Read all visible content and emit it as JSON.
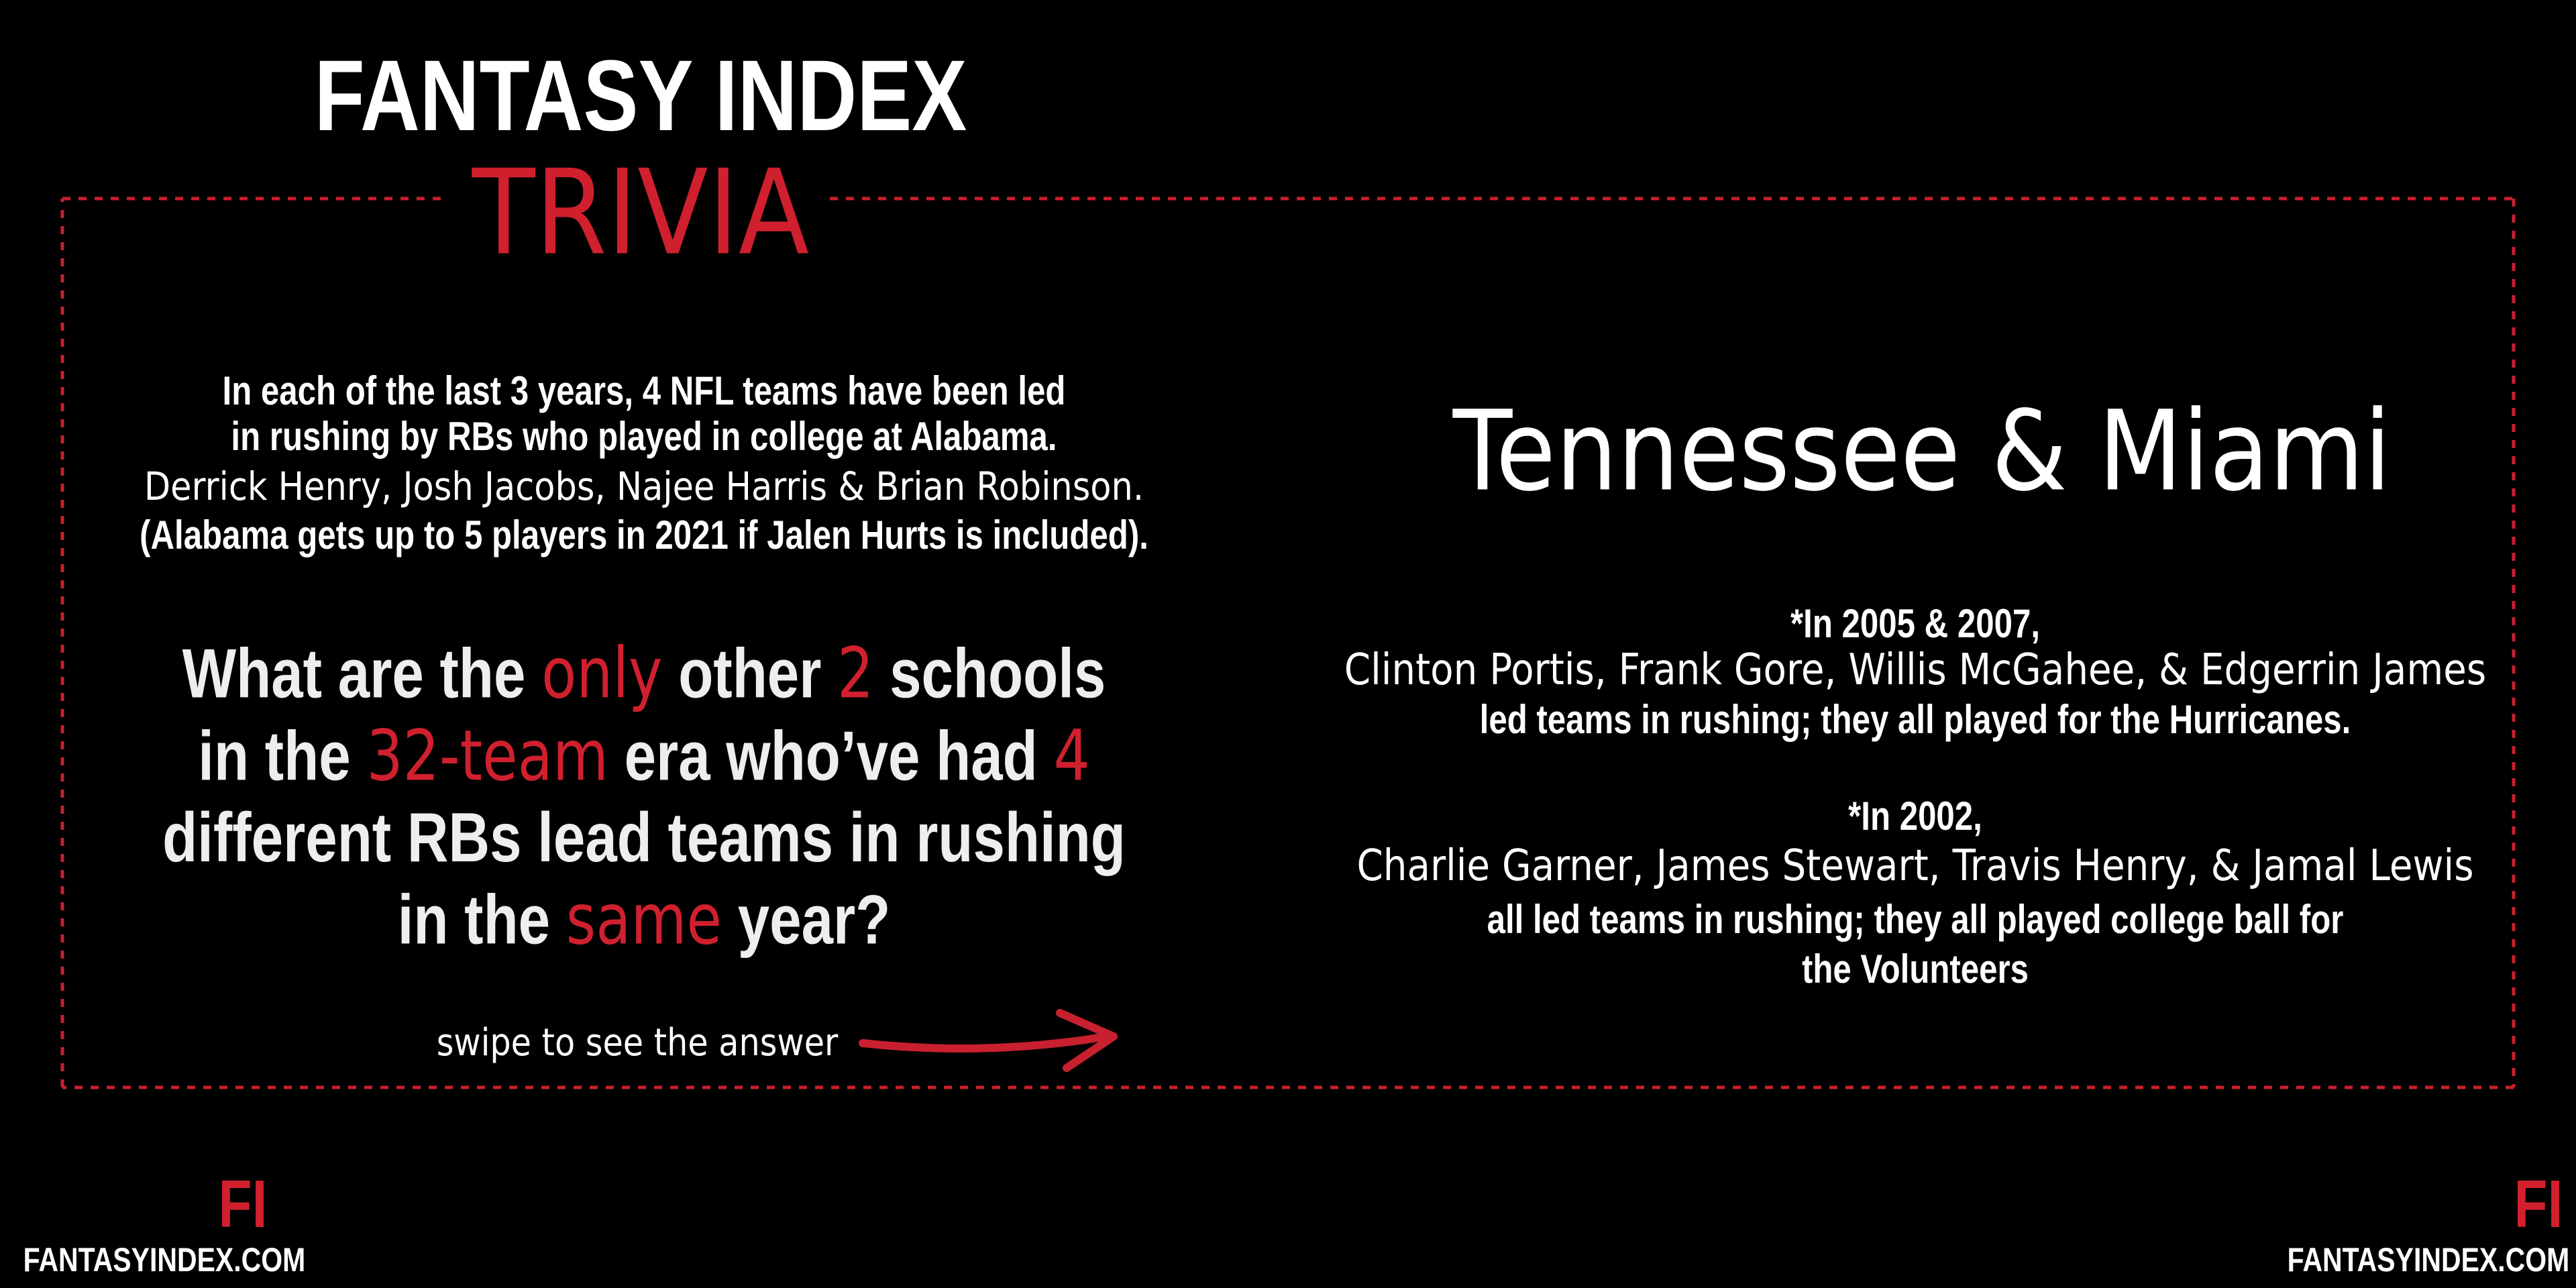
{
  "header": {
    "title": "FANTASY INDEX",
    "subtitle": "TRIVIA"
  },
  "intro": [
    "In each of the last 3 years, 4 NFL teams have been led",
    "in rushing by RBs who played in college at Alabama.",
    "Derrick Henry, Josh Jacobs, Najee Harris & Brian Robinson.",
    "(Alabama gets up to 5 players in 2021 if Jalen Hurts is included)."
  ],
  "question": [
    [
      {
        "text": "What are the ",
        "color": "#eeeeee"
      },
      {
        "text": "only",
        "color": "#d0202e"
      },
      {
        "text": " other ",
        "color": "#eeeeee"
      },
      {
        "text": "2",
        "color": "#d0202e"
      },
      {
        "text": " schools",
        "color": "#eeeeee"
      }
    ],
    [
      {
        "text": "in the ",
        "color": "#eeeeee"
      },
      {
        "text": "32-team",
        "color": "#d0202e"
      },
      {
        "text": " era who’ve had ",
        "color": "#eeeeee"
      },
      {
        "text": "4",
        "color": "#d0202e"
      }
    ],
    [
      {
        "text": "different RBs lead teams in rushing",
        "color": "#eeeeee"
      }
    ],
    [
      {
        "text": "in the ",
        "color": "#eeeeee"
      },
      {
        "text": "same",
        "color": "#d0202e"
      },
      {
        "text": " year?",
        "color": "#eeeeee"
      }
    ]
  ],
  "swipe": "swipe to see the answer",
  "answer": "Tennessee & Miami",
  "notes": [
    {
      "lead": "*In 2005 & 2007,",
      "names": "Clinton Portis, Frank Gore, Willis McGahee, & Edgerrin James",
      "text": [
        "led teams in rushing; they all played for the Hurricanes."
      ]
    },
    {
      "lead": "*In 2002,",
      "names": "Charlie Garner, James Stewart, Travis Henry, & Jamal Lewis",
      "text": [
        "all led teams in rushing; they all played college ball for",
        "the Volunteers"
      ]
    }
  ],
  "footer": {
    "logo": "FI",
    "url": "FANTASYINDEX.COM"
  }
}
